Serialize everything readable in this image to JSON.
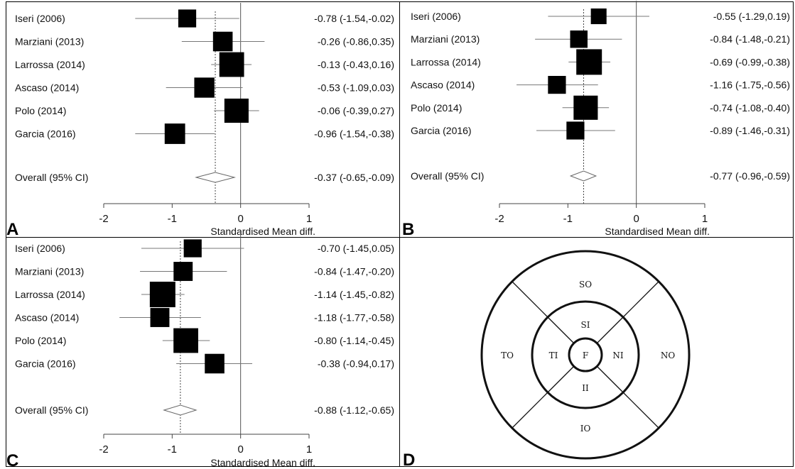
{
  "chart_data": [
    {
      "panel": "A",
      "type": "forest",
      "xlabel": "Standardised Mean diff.",
      "xlim": [
        -2,
        1
      ],
      "xticks": [
        "-2",
        "-1",
        "0",
        "1"
      ],
      "pooled_line": -0.37,
      "studies": [
        {
          "label": "Iseri (2006)",
          "estimate": -0.78,
          "lower": -1.54,
          "upper": -0.02,
          "ci_text": "-0.78 (-1.54,-0.02)",
          "weight": 0.55
        },
        {
          "label": "Marziani (2013)",
          "estimate": -0.26,
          "lower": -0.86,
          "upper": 0.35,
          "ci_text": "-0.26 (-0.86,0.35)",
          "weight": 0.65
        },
        {
          "label": "Larrossa (2014)",
          "estimate": -0.13,
          "lower": -0.43,
          "upper": 0.16,
          "ci_text": "-0.13 (-0.43,0.16)",
          "weight": 0.95
        },
        {
          "label": "Ascaso (2014)",
          "estimate": -0.53,
          "lower": -1.09,
          "upper": 0.03,
          "ci_text": "-0.53 (-1.09,0.03)",
          "weight": 0.68
        },
        {
          "label": "Polo (2014)",
          "estimate": -0.06,
          "lower": -0.39,
          "upper": 0.27,
          "ci_text": "-0.06 (-0.39,0.27)",
          "weight": 0.92
        },
        {
          "label": "Garcia (2016)",
          "estimate": -0.96,
          "lower": -1.54,
          "upper": -0.38,
          "ci_text": "-0.96 (-1.54,-0.38)",
          "weight": 0.7
        }
      ],
      "overall": {
        "label": "Overall (95% CI)",
        "estimate": -0.37,
        "lower": -0.65,
        "upper": -0.09,
        "ci_text": "-0.37 (-0.65,-0.09)"
      }
    },
    {
      "panel": "B",
      "type": "forest",
      "xlabel": "Standardised Mean diff.",
      "xlim": [
        -2,
        1
      ],
      "xticks": [
        "-2",
        "-1",
        "0",
        "1"
      ],
      "pooled_line": -0.77,
      "studies": [
        {
          "label": "Iseri (2006)",
          "estimate": -0.55,
          "lower": -1.29,
          "upper": 0.19,
          "ci_text": "-0.55 (-1.29,0.19)",
          "weight": 0.42
        },
        {
          "label": "Marziani (2013)",
          "estimate": -0.84,
          "lower": -1.48,
          "upper": -0.21,
          "ci_text": "-0.84 (-1.48,-0.21)",
          "weight": 0.52
        },
        {
          "label": "Larrossa (2014)",
          "estimate": -0.69,
          "lower": -0.99,
          "upper": -0.38,
          "ci_text": "-0.69 (-0.99,-0.38)",
          "weight": 1.0
        },
        {
          "label": "Ascaso (2014)",
          "estimate": -1.16,
          "lower": -1.75,
          "upper": -0.56,
          "ci_text": "-1.16 (-1.75,-0.56)",
          "weight": 0.55
        },
        {
          "label": "Polo (2014)",
          "estimate": -0.74,
          "lower": -1.08,
          "upper": -0.4,
          "ci_text": "-0.74 (-1.08,-0.40)",
          "weight": 0.92
        },
        {
          "label": "Garcia (2016)",
          "estimate": -0.89,
          "lower": -1.46,
          "upper": -0.31,
          "ci_text": "-0.89 (-1.46,-0.31)",
          "weight": 0.55
        }
      ],
      "overall": {
        "label": "Overall (95% CI)",
        "estimate": -0.77,
        "lower": -0.96,
        "upper": -0.59,
        "ci_text": "-0.77 (-0.96,-0.59)"
      }
    },
    {
      "panel": "C",
      "type": "forest",
      "xlabel": "Standardised Mean diff.",
      "xlim": [
        -2,
        1
      ],
      "xticks": [
        "-2",
        "-1",
        "0",
        "1"
      ],
      "pooled_line": -0.88,
      "studies": [
        {
          "label": "Iseri (2006)",
          "estimate": -0.7,
          "lower": -1.45,
          "upper": 0.05,
          "ci_text": "-0.70 (-1.45,0.05)",
          "weight": 0.55
        },
        {
          "label": "Marziani (2013)",
          "estimate": -0.84,
          "lower": -1.47,
          "upper": -0.2,
          "ci_text": "-0.84 (-1.47,-0.20)",
          "weight": 0.62
        },
        {
          "label": "Larrossa (2014)",
          "estimate": -1.14,
          "lower": -1.45,
          "upper": -0.82,
          "ci_text": "-1.14 (-1.45,-0.82)",
          "weight": 1.0
        },
        {
          "label": "Ascaso (2014)",
          "estimate": -1.18,
          "lower": -1.77,
          "upper": -0.58,
          "ci_text": "-1.18 (-1.77,-0.58)",
          "weight": 0.62
        },
        {
          "label": "Polo (2014)",
          "estimate": -0.8,
          "lower": -1.14,
          "upper": -0.45,
          "ci_text": "-0.80 (-1.14,-0.45)",
          "weight": 0.95
        },
        {
          "label": "Garcia (2016)",
          "estimate": -0.38,
          "lower": -0.94,
          "upper": 0.17,
          "ci_text": "-0.38 (-0.94,0.17)",
          "weight": 0.65
        }
      ],
      "overall": {
        "label": "Overall (95% CI)",
        "estimate": -0.88,
        "lower": -1.12,
        "upper": -0.65,
        "ci_text": "-0.88 (-1.12,-0.65)"
      }
    }
  ],
  "diagram": {
    "panel": "D",
    "sectors": {
      "outer_superior": "SO",
      "outer_temporal": "TO",
      "outer_nasal": "NO",
      "outer_inferior": "IO",
      "inner_superior": "SI",
      "inner_temporal": "TI",
      "inner_nasal": "NI",
      "inner_inferior": "II",
      "center": "F"
    }
  }
}
